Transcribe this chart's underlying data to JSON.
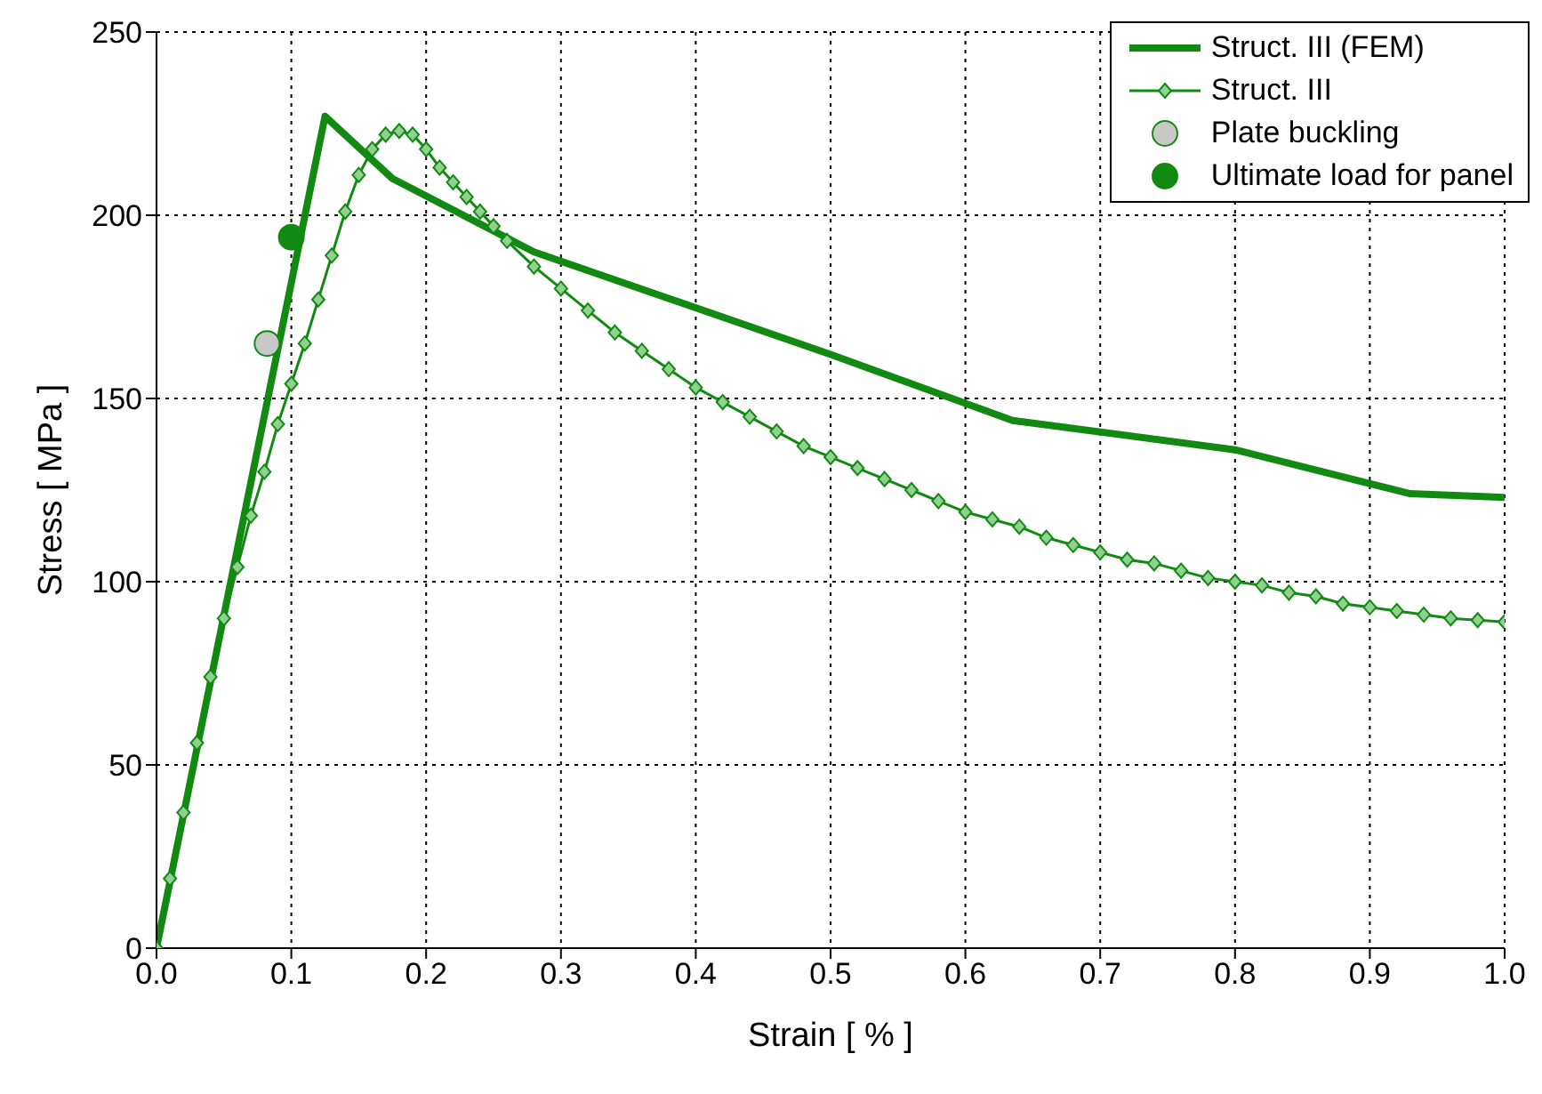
{
  "chart_data": {
    "type": "line",
    "xlabel": "Strain [ % ]",
    "ylabel": "Stress [ MPa ]",
    "xlim": [
      0,
      1
    ],
    "xticks": [
      {
        "value": 0,
        "label": "0.0"
      },
      0.1,
      0.2,
      0.3,
      0.4,
      0.5,
      0.6,
      0.7,
      0.8,
      0.9,
      {
        "value": 1,
        "label": "1.0"
      }
    ],
    "ylim": [
      0,
      250
    ],
    "yticks": [
      0,
      50,
      100,
      150,
      200,
      250
    ],
    "grid": true,
    "legend": "top right",
    "series": [
      {
        "name": "Struct. III (FEM)",
        "color": "#128a12",
        "marker": "none",
        "x": [
          0,
          0.125,
          0.175,
          0.28,
          0.5,
          0.635,
          0.8,
          0.93,
          1.0
        ],
        "values": [
          0,
          227,
          210,
          190,
          162,
          144,
          136,
          124,
          123
        ]
      },
      {
        "name": "Struct. III",
        "color": "#128a12",
        "marker": "diamond",
        "x": [
          0,
          0.01,
          0.02,
          0.03,
          0.04,
          0.05,
          0.06,
          0.07,
          0.08,
          0.09,
          0.1,
          0.11,
          0.12,
          0.13,
          0.14,
          0.15,
          0.16,
          0.17,
          0.18,
          0.19,
          0.2,
          0.21,
          0.22,
          0.23,
          0.24,
          0.25,
          0.26,
          0.28,
          0.3,
          0.32,
          0.34,
          0.36,
          0.38,
          0.4,
          0.42,
          0.44,
          0.46,
          0.48,
          0.5,
          0.52,
          0.54,
          0.56,
          0.58,
          0.6,
          0.62,
          0.64,
          0.66,
          0.68,
          0.7,
          0.72,
          0.74,
          0.76,
          0.78,
          0.8,
          0.82,
          0.84,
          0.86,
          0.88,
          0.9,
          0.92,
          0.94,
          0.96,
          0.98,
          1.0
        ],
        "values": [
          0,
          19,
          37,
          56,
          74,
          90,
          104,
          118,
          130,
          143,
          154,
          165,
          177,
          189,
          201,
          211,
          218,
          222,
          223,
          222,
          218,
          213,
          209,
          205,
          201,
          197,
          193,
          186,
          180,
          174,
          168,
          163,
          158,
          153,
          149,
          145,
          141,
          137,
          134,
          131,
          128,
          125,
          122,
          119,
          117,
          115,
          112,
          110,
          108,
          106,
          105,
          103,
          101,
          100,
          99,
          97,
          96,
          94,
          93,
          92,
          91,
          90,
          89.5,
          89
        ]
      },
      {
        "name": "Plate buckling",
        "type": "scatter",
        "color": "#c8c8c8",
        "marker": "circle",
        "x": [
          0.082
        ],
        "values": [
          165
        ]
      },
      {
        "name": "Ultimate load for panel",
        "type": "scatter",
        "color": "#128a12",
        "marker": "circle",
        "x": [
          0.1
        ],
        "values": [
          194
        ]
      }
    ]
  }
}
